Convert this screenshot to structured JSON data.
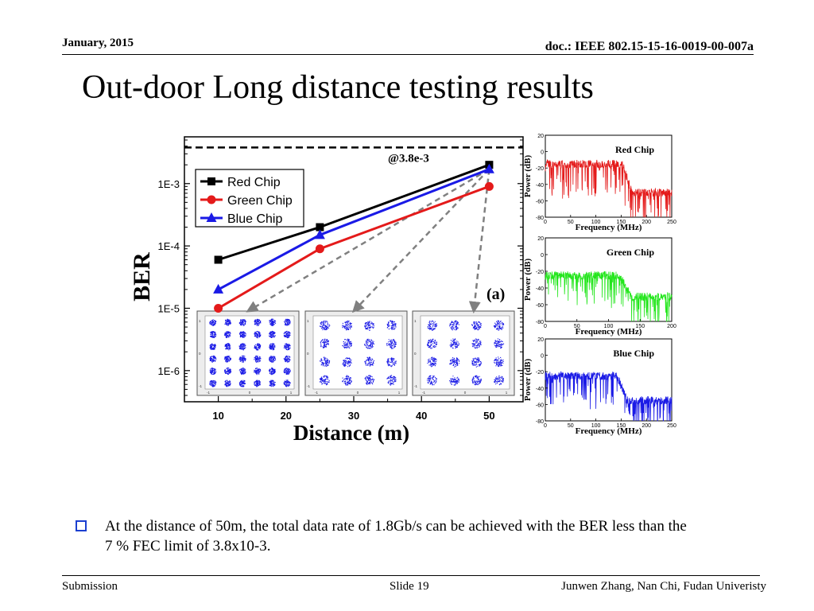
{
  "header": {
    "date": "January, 2015",
    "doc": "doc.: IEEE 802.15-15-16-0019-00-007a"
  },
  "slide_title": "Out-door Long distance testing results",
  "bullet": "At the distance of 50m, the total data rate of 1.8Gb/s can be achieved with the BER less than the 7 % FEC limit of 3.8x10-3.",
  "footer": {
    "left": "Submission",
    "center": "Slide 19",
    "right": "Junwen Zhang, Nan Chi, Fudan Univeristy"
  },
  "colors": {
    "red": "#e41a1a",
    "green": "#22e61b",
    "blue": "#1a1ae6",
    "black": "#000000",
    "bullet": "#1b3fd0"
  },
  "chart_data": [
    {
      "type": "line",
      "xlabel": "Distance (m)",
      "ylabel": "BER",
      "x_ticks": [
        "10",
        "20",
        "30",
        "40",
        "50"
      ],
      "y_ticks": [
        "1E-6",
        "1E-5",
        "1E-4",
        "1E-3"
      ],
      "xlim": [
        5,
        55
      ],
      "ylim_log10": [
        -6.5,
        -2.25
      ],
      "y_scale": "log",
      "threshold": {
        "value": 0.0038,
        "label": "@3.8e-3"
      },
      "panel_label": "(a)",
      "legend_position": "top-left",
      "series": [
        {
          "name": "Red Chip",
          "marker": "square",
          "color": "#000000",
          "x": [
            10,
            25,
            50
          ],
          "y": [
            6e-05,
            0.0002,
            0.002
          ]
        },
        {
          "name": "Green Chip",
          "marker": "circle",
          "color": "#e41a1a",
          "x": [
            10,
            25,
            50
          ],
          "y": [
            1e-05,
            9e-05,
            0.0009
          ]
        },
        {
          "name": "Blue Chip",
          "marker": "triangle",
          "color": "#1a1ae6",
          "x": [
            10,
            25,
            50
          ],
          "y": [
            2e-05,
            0.00015,
            0.0017
          ]
        }
      ]
    },
    {
      "type": "line",
      "title": "Red Chip",
      "xlabel": "Frequency (MHz)",
      "ylabel": "Power (dB)",
      "x_ticks": [
        "0",
        "50",
        "100",
        "150",
        "200",
        "250"
      ],
      "y_ticks": [
        "-80",
        "-60",
        "-40",
        "-20",
        "0",
        "20"
      ],
      "xlim": [
        0,
        250
      ],
      "ylim": [
        -80,
        20
      ],
      "color": "#e41a1a",
      "passband_mhz": 160,
      "passband_level_db": -15,
      "stopband_level_db": -50
    },
    {
      "type": "line",
      "title": "Green Chip",
      "xlabel": "Frequency (MHz)",
      "ylabel": "Power (dB)",
      "x_ticks": [
        "0",
        "50",
        "100",
        "150",
        "200"
      ],
      "y_ticks": [
        "-80",
        "-60",
        "-40",
        "-20",
        "0",
        "20"
      ],
      "xlim": [
        0,
        200
      ],
      "ylim": [
        -80,
        20
      ],
      "color": "#22e61b",
      "passband_mhz": 125,
      "passband_level_db": -25,
      "stopband_level_db": -50
    },
    {
      "type": "line",
      "title": "Blue Chip",
      "xlabel": "Frequency (MHz)",
      "ylabel": "Power (dB)",
      "x_ticks": [
        "0",
        "50",
        "100",
        "150",
        "200",
        "250"
      ],
      "y_ticks": [
        "-80",
        "-60",
        "-40",
        "-20",
        "0",
        "20"
      ],
      "xlim": [
        0,
        250
      ],
      "ylim": [
        -80,
        20
      ],
      "color": "#1a1ae6",
      "passband_mhz": 150,
      "passband_level_db": -25,
      "stopband_level_db": -55
    }
  ],
  "constellations": [
    {
      "name": "constellation-10m",
      "grid": 6,
      "x_ticks": [
        "-1",
        "0",
        "1"
      ],
      "y_ticks": [
        "1",
        "0",
        "-1"
      ]
    },
    {
      "name": "constellation-25m",
      "grid": 4,
      "x_ticks": [
        "-1",
        "0",
        "1"
      ],
      "y_ticks": [
        "1",
        "0",
        "-1"
      ]
    },
    {
      "name": "constellation-50m",
      "grid": 4,
      "x_ticks": [
        "-1",
        "0",
        "1"
      ],
      "y_ticks": [
        "1",
        "0",
        "-1"
      ]
    }
  ]
}
